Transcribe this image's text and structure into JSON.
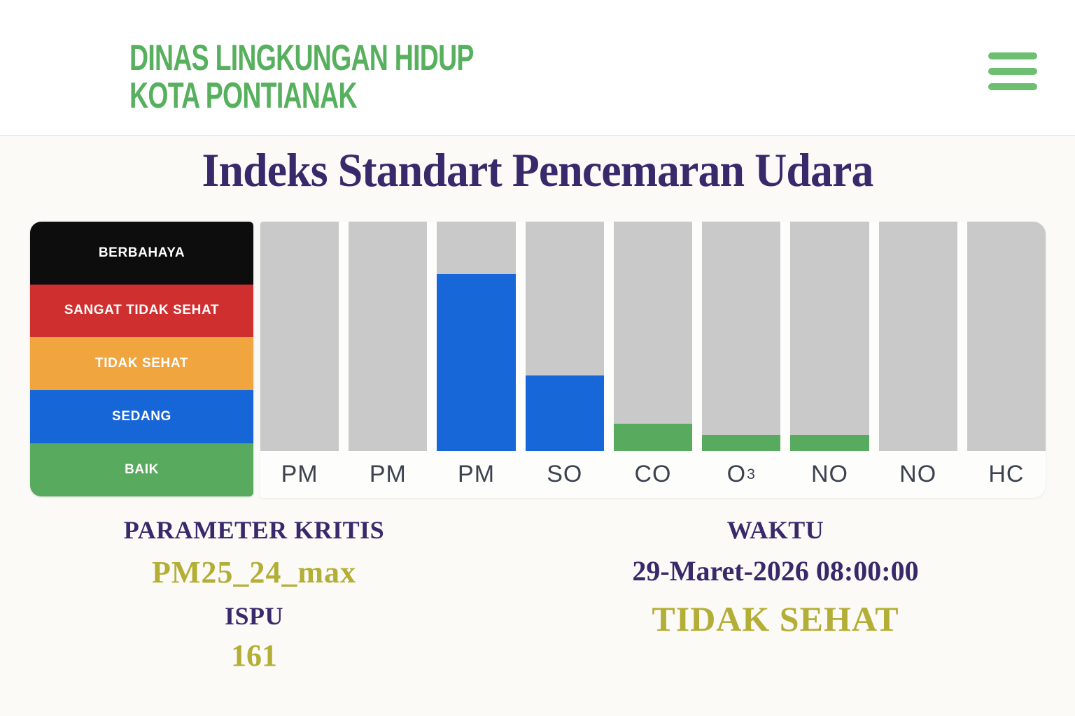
{
  "header": {
    "brand_line1": "DINAS LINGKUNGAN HIDUP",
    "brand_line2": "KOTA PONTIANAK",
    "brand_color": "#57b05e",
    "menu_icon": "hamburger-icon",
    "menu_icon_color": "#6cbf70"
  },
  "page": {
    "title": "Indeks Standart Pencemaran Udara",
    "title_color": "#38296b",
    "background_color": "#fbfaf7"
  },
  "legend": {
    "items": [
      {
        "label": "BERBAHAYA",
        "color": "#0d0d0d"
      },
      {
        "label": "SANGAT TIDAK SEHAT",
        "color": "#d02f2f"
      },
      {
        "label": "TIDAK SEHAT",
        "color": "#f0a53f"
      },
      {
        "label": "SEDANG",
        "color": "#1766d8"
      },
      {
        "label": "BAIK",
        "color": "#57aa5e"
      }
    ]
  },
  "chart_data": {
    "type": "bar",
    "title": "Indeks Standart Pencemaran Udara",
    "xlabel": "",
    "ylabel": "",
    "grid": false,
    "legend_position": "left",
    "track_color": "#c9c9c9",
    "ylim_pct": [
      0,
      100
    ],
    "categories": [
      "PM",
      "PM",
      "PM",
      "SO",
      "CO",
      "O3",
      "NO",
      "NO",
      "HC"
    ],
    "values_pct": [
      0,
      0,
      77,
      33,
      12,
      7,
      7,
      0,
      0
    ],
    "columns": [
      {
        "label": "PM",
        "sub": "",
        "value_pct": 0,
        "bar_color": null
      },
      {
        "label": "PM",
        "sub": "",
        "value_pct": 0,
        "bar_color": null
      },
      {
        "label": "PM",
        "sub": "",
        "value_pct": 77,
        "bar_color": "#1767d9"
      },
      {
        "label": "SO",
        "sub": "",
        "value_pct": 33,
        "bar_color": "#1767d9"
      },
      {
        "label": "CO",
        "sub": "",
        "value_pct": 12,
        "bar_color": "#58ab5e"
      },
      {
        "label": "O",
        "sub": "3",
        "value_pct": 7,
        "bar_color": "#58ab5e"
      },
      {
        "label": "NO",
        "sub": "",
        "value_pct": 7,
        "bar_color": "#58ab5e"
      },
      {
        "label": "NO",
        "sub": "",
        "value_pct": 0,
        "bar_color": null
      },
      {
        "label": "HC",
        "sub": "",
        "value_pct": 0,
        "bar_color": null
      }
    ]
  },
  "info": {
    "parameter_label": "PARAMETER KRITIS",
    "parameter_value": "PM25_24_max",
    "ispu_label": "ISPU",
    "ispu_value": "161",
    "waktu_label": "WAKTU",
    "waktu_value": "29-Maret-2026 08:00:00",
    "status_value": "TIDAK SEHAT",
    "label_color": "#38296b",
    "highlight_color": "#b3ae35"
  }
}
